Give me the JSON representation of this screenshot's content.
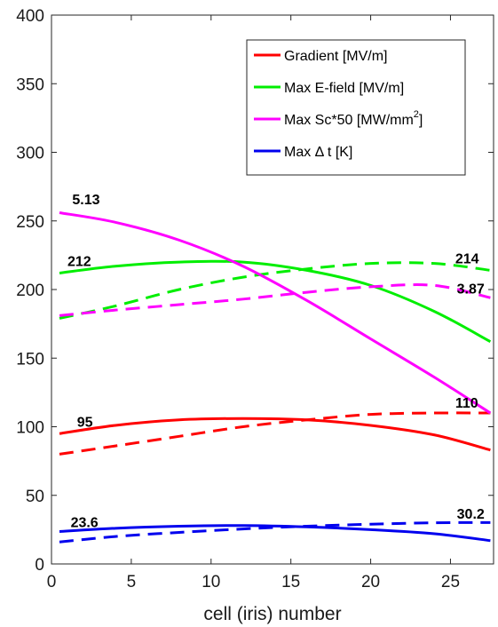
{
  "chart_data": {
    "type": "line",
    "title": "",
    "xlabel": "cell (iris) number",
    "ylabel": "",
    "xlim": [
      0,
      27.7
    ],
    "ylim": [
      0,
      400
    ],
    "x_ticks": [
      0,
      5,
      10,
      15,
      20,
      25
    ],
    "y_ticks": [
      0,
      50,
      100,
      150,
      200,
      250,
      300,
      350,
      400
    ],
    "grid": false,
    "legend_position": "top-right",
    "legend": [
      {
        "label": "Gradient [MV/m]",
        "color": "#ff0000"
      },
      {
        "label": "Max E-field [MV/m]",
        "color": "#00ee00"
      },
      {
        "label": "Max Sc*50 [MW/mm",
        "sup": "2",
        "suffix": "]",
        "color": "#ff00ff"
      },
      {
        "label": "Max Δ t [K]",
        "color": "#0000ee"
      }
    ],
    "series": [
      {
        "legend_index": 0,
        "style": "solid",
        "color": "#ff0000",
        "x": [
          0.5,
          4,
          8,
          12,
          16,
          20,
          24,
          27.5
        ],
        "y": [
          95,
          101,
          105,
          106,
          105,
          101,
          94,
          83
        ]
      },
      {
        "legend_index": 0,
        "style": "dashed",
        "color": "#ff0000",
        "x": [
          0.5,
          4,
          8,
          12,
          16,
          20,
          24,
          27.5
        ],
        "y": [
          80,
          86,
          93,
          100,
          105,
          109,
          110,
          110
        ]
      },
      {
        "legend_index": 1,
        "style": "solid",
        "color": "#00ee00",
        "x": [
          0.5,
          4,
          8,
          12,
          16,
          20,
          24,
          27.5
        ],
        "y": [
          212,
          217,
          220,
          220,
          214,
          203,
          184,
          162
        ]
      },
      {
        "legend_index": 1,
        "style": "dashed",
        "color": "#00ee00",
        "x": [
          0.5,
          4,
          8,
          12,
          16,
          20,
          24,
          27.5
        ],
        "y": [
          179,
          188,
          200,
          209,
          215,
          219,
          219,
          214
        ]
      },
      {
        "legend_index": 2,
        "style": "solid",
        "color": "#ff00ff",
        "x": [
          0.5,
          4,
          8,
          12,
          16,
          20,
          24,
          27.5
        ],
        "y": [
          256,
          249,
          236,
          217,
          192,
          164,
          136,
          110
        ]
      },
      {
        "legend_index": 2,
        "style": "dashed",
        "color": "#ff00ff",
        "x": [
          0.5,
          4,
          8,
          12,
          16,
          20,
          24,
          27.5
        ],
        "y": [
          181,
          185,
          189,
          193,
          198,
          202,
          203,
          194
        ]
      },
      {
        "legend_index": 3,
        "style": "solid",
        "color": "#0000ee",
        "x": [
          0.5,
          4,
          8,
          12,
          16,
          20,
          24,
          27.5
        ],
        "y": [
          23.6,
          26,
          27.5,
          28,
          27,
          25,
          22,
          17
        ]
      },
      {
        "legend_index": 3,
        "style": "dashed",
        "color": "#0000ee",
        "x": [
          0.5,
          4,
          8,
          12,
          16,
          20,
          24,
          27.5
        ],
        "y": [
          16,
          20,
          23,
          25.5,
          27.5,
          29,
          30,
          30.2
        ]
      }
    ],
    "annotations": [
      {
        "text": "5.13",
        "x": 1.3,
        "y": 262
      },
      {
        "text": "212",
        "x": 1.0,
        "y": 217
      },
      {
        "text": "95",
        "x": 1.6,
        "y": 100
      },
      {
        "text": "23.6",
        "x": 1.2,
        "y": 27
      },
      {
        "text": "214",
        "x": 25.3,
        "y": 219
      },
      {
        "text": "3.87",
        "x": 25.4,
        "y": 197
      },
      {
        "text": "110",
        "x": 25.3,
        "y": 114
      },
      {
        "text": "30.2",
        "x": 25.4,
        "y": 33
      }
    ]
  }
}
